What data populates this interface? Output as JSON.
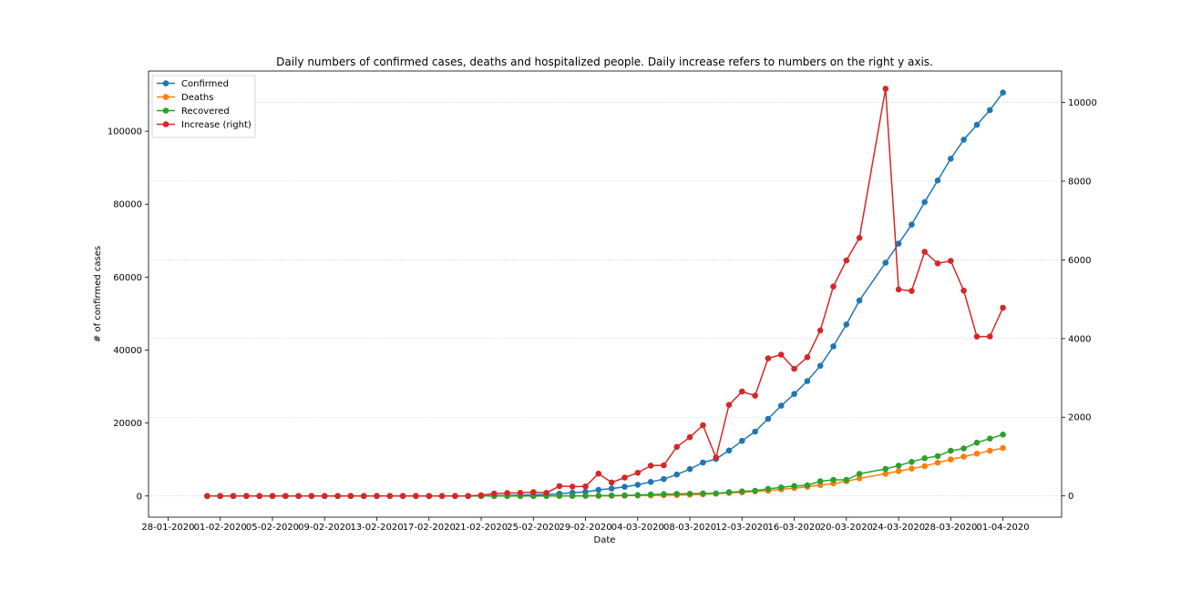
{
  "chart_data": {
    "type": "line",
    "title": "Daily numbers of confirmed cases, deaths and hospitalized people. Daily increase refers to numbers on the right y axis.",
    "xlabel": "Date",
    "ylabel": "# of confirmed cases",
    "ylabel_right": "",
    "grid": true,
    "legend_position": "top-left",
    "x_tick_labels": [
      "28-01-2020",
      "01-02-2020",
      "05-02-2020",
      "09-02-2020",
      "13-02-2020",
      "17-02-2020",
      "21-02-2020",
      "25-02-2020",
      "29-02-2020",
      "04-03-2020",
      "08-03-2020",
      "12-03-2020",
      "16-03-2020",
      "20-03-2020",
      "24-03-2020",
      "28-03-2020",
      "01-04-2020"
    ],
    "y_ticks": [
      0,
      20000,
      40000,
      60000,
      80000,
      100000
    ],
    "y_right_ticks": [
      0,
      2000,
      4000,
      6000,
      8000,
      10000
    ],
    "ylim": [
      -5800,
      116500
    ],
    "ylim_right": [
      -540,
      10800
    ],
    "x": [
      "31-01-2020",
      "01-02-2020",
      "02-02-2020",
      "03-02-2020",
      "04-02-2020",
      "05-02-2020",
      "06-02-2020",
      "07-02-2020",
      "08-02-2020",
      "09-02-2020",
      "10-02-2020",
      "11-02-2020",
      "12-02-2020",
      "13-02-2020",
      "14-02-2020",
      "15-02-2020",
      "16-02-2020",
      "17-02-2020",
      "18-02-2020",
      "19-02-2020",
      "20-02-2020",
      "21-02-2020",
      "22-02-2020",
      "23-02-2020",
      "24-02-2020",
      "25-02-2020",
      "26-02-2020",
      "27-02-2020",
      "28-02-2020",
      "29-02-2020",
      "01-03-2020",
      "02-03-2020",
      "03-03-2020",
      "04-03-2020",
      "05-03-2020",
      "06-03-2020",
      "07-03-2020",
      "08-03-2020",
      "09-03-2020",
      "10-03-2020",
      "11-03-2020",
      "12-03-2020",
      "13-03-2020",
      "14-03-2020",
      "15-03-2020",
      "16-03-2020",
      "17-03-2020",
      "18-03-2020",
      "19-03-2020",
      "20-03-2020",
      "21-03-2020",
      "23-03-2020",
      "24-03-2020",
      "25-03-2020",
      "26-03-2020",
      "27-03-2020",
      "28-03-2020",
      "29-03-2020",
      "30-03-2020",
      "31-03-2020",
      "01-04-2020"
    ],
    "series": [
      {
        "name": "Confirmed",
        "color": "#1f77b4",
        "axis": "left",
        "values": [
          0,
          2,
          2,
          2,
          2,
          2,
          2,
          3,
          3,
          3,
          3,
          3,
          3,
          3,
          3,
          3,
          3,
          3,
          3,
          3,
          3,
          20,
          79,
          150,
          229,
          322,
          400,
          650,
          888,
          1128,
          1694,
          2036,
          2502,
          3089,
          3858,
          4636,
          5883,
          7375,
          9172,
          10149,
          12462,
          15113,
          17660,
          21157,
          24747,
          27980,
          31506,
          35713,
          41035,
          47021,
          53578,
          63927,
          69176,
          74386,
          80589,
          86498,
          92472,
          97689,
          101739,
          105792,
          110574
        ]
      },
      {
        "name": "Deaths",
        "color": "#ff7f0e",
        "axis": "left",
        "values": [
          0,
          0,
          0,
          0,
          0,
          0,
          0,
          0,
          0,
          0,
          0,
          0,
          0,
          0,
          0,
          0,
          0,
          0,
          0,
          0,
          0,
          1,
          2,
          3,
          7,
          10,
          12,
          17,
          21,
          29,
          34,
          52,
          79,
          107,
          148,
          197,
          233,
          366,
          463,
          631,
          827,
          1016,
          1266,
          1441,
          1809,
          2158,
          2503,
          2978,
          3405,
          4032,
          4825,
          6077,
          6820,
          7503,
          8165,
          9134,
          10023,
          10779,
          11591,
          12428,
          13155
        ]
      },
      {
        "name": "Recovered",
        "color": "#2ca02c",
        "axis": "left",
        "values": [
          0,
          0,
          0,
          0,
          0,
          0,
          0,
          0,
          0,
          0,
          0,
          0,
          0,
          0,
          0,
          0,
          0,
          0,
          0,
          0,
          0,
          0,
          1,
          2,
          1,
          1,
          3,
          45,
          46,
          50,
          83,
          149,
          160,
          276,
          414,
          523,
          589,
          622,
          724,
          724,
          1045,
          1258,
          1439,
          1966,
          2335,
          2749,
          2941,
          4025,
          4440,
          4440,
          6072,
          7432,
          8326,
          9362,
          10361,
          10950,
          12384,
          13030,
          14620,
          15729,
          16847
        ]
      },
      {
        "name": "Increase (right)",
        "color": "#d62728",
        "axis": "right",
        "values": [
          0,
          0,
          0,
          0,
          0,
          0,
          0,
          0,
          0,
          0,
          0,
          0,
          0,
          0,
          0,
          0,
          0,
          0,
          0,
          0,
          0,
          17,
          59,
          71,
          79,
          93,
          78,
          250,
          238,
          240,
          566,
          342,
          466,
          587,
          769,
          778,
          1247,
          1492,
          1797,
          977,
          2313,
          2651,
          2547,
          3497,
          3590,
          3233,
          3526,
          4207,
          5322,
          5986,
          6557,
          10350,
          5249,
          5210,
          6203,
          5909,
          5974,
          5217,
          4050,
          4053,
          4782
        ]
      }
    ]
  }
}
